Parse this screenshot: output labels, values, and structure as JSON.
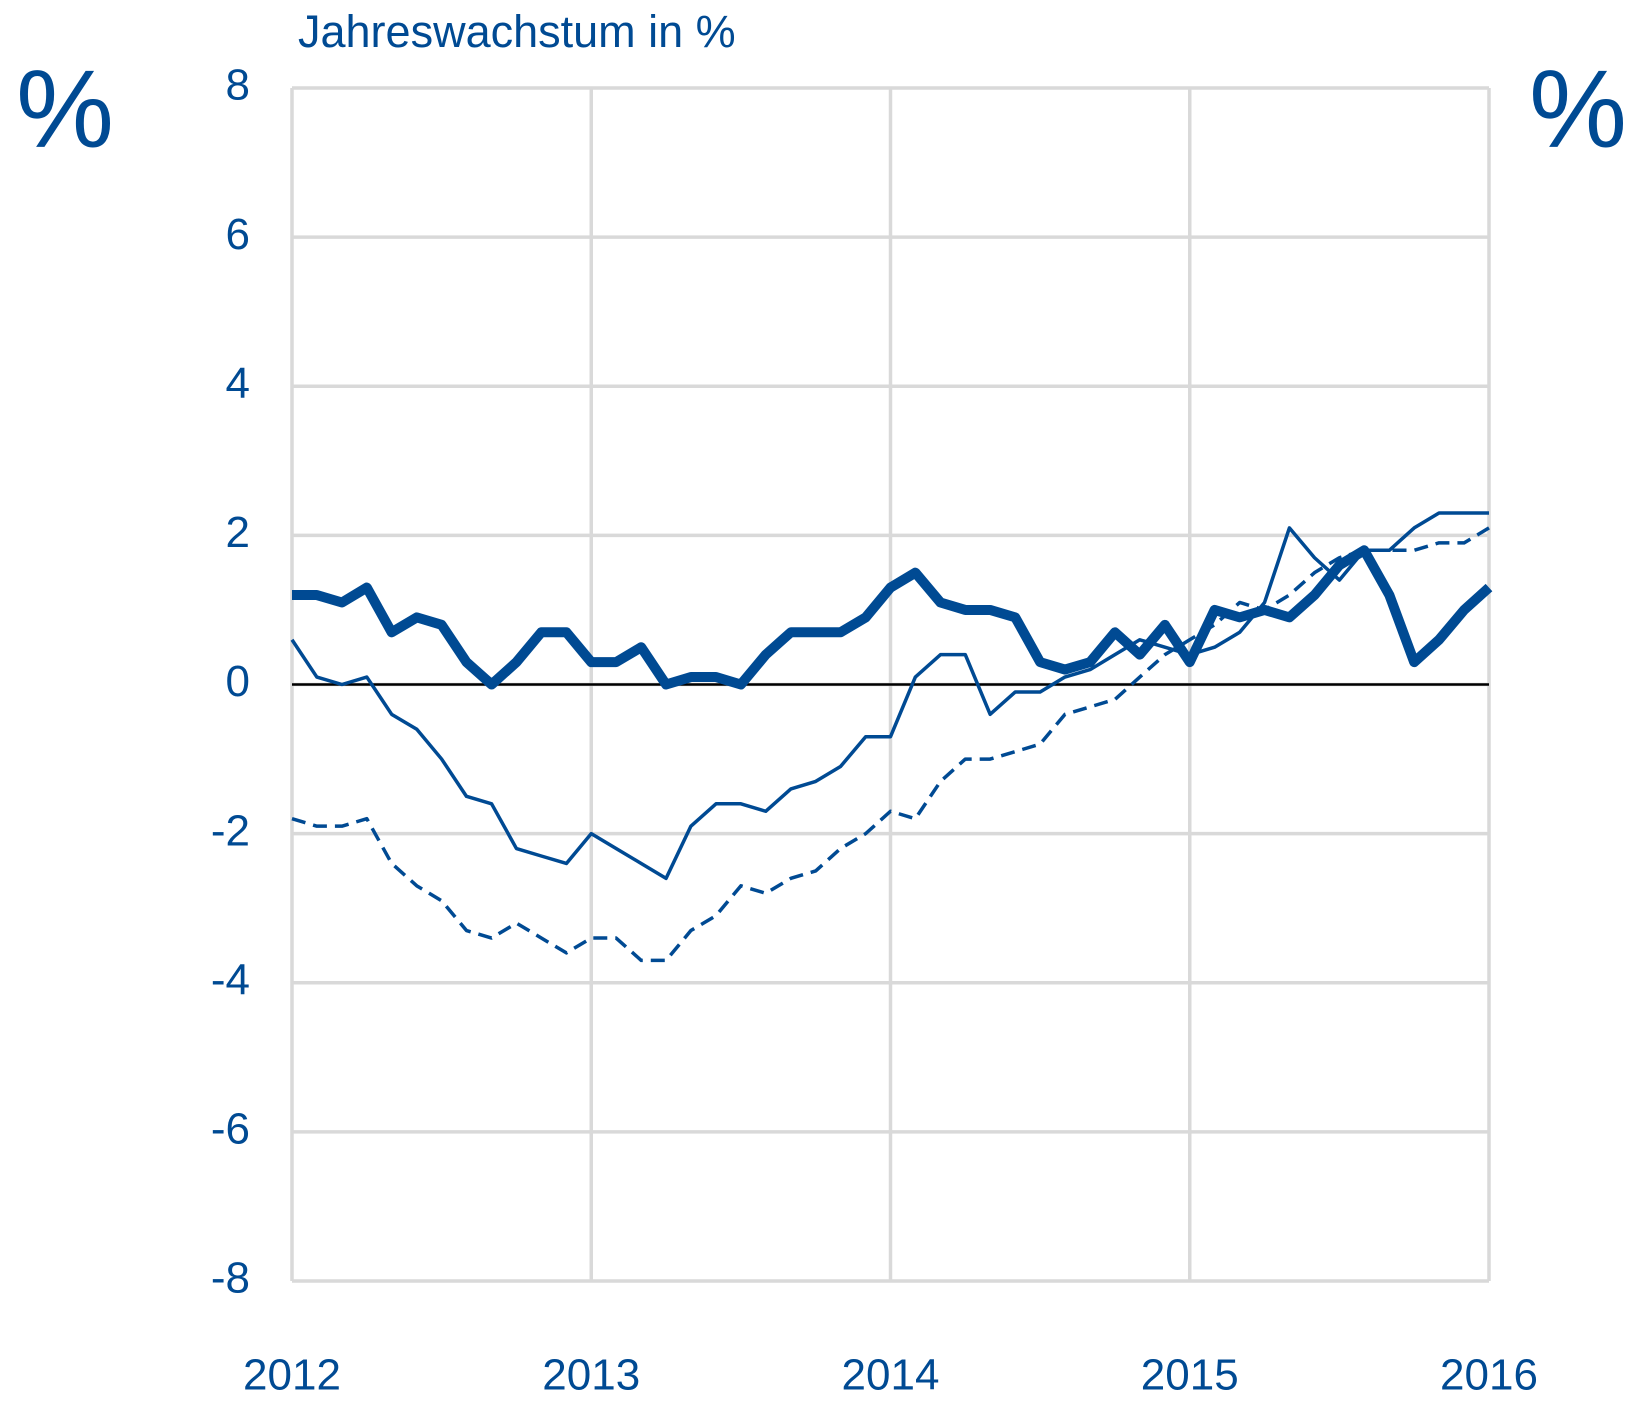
{
  "chart_data": {
    "type": "line",
    "title": "Jahreswachstum in %",
    "ylabel": "%",
    "y2label": "%",
    "x": [
      2012,
      2012.083,
      2012.167,
      2012.25,
      2012.333,
      2012.417,
      2012.5,
      2012.583,
      2012.667,
      2012.75,
      2012.833,
      2012.917,
      2013,
      2013.083,
      2013.167,
      2013.25,
      2013.333,
      2013.417,
      2013.5,
      2013.583,
      2013.667,
      2013.75,
      2013.833,
      2013.917,
      2014,
      2014.083,
      2014.167,
      2014.25,
      2014.333,
      2014.417,
      2014.5,
      2014.583,
      2014.667,
      2014.75,
      2014.833,
      2014.917,
      2015,
      2015.083,
      2015.167,
      2015.25,
      2015.333,
      2015.417,
      2015.5,
      2015.583,
      2015.667,
      2015.75,
      2015.833,
      2015.917,
      2016
    ],
    "series": [
      {
        "color": "#004a93",
        "width": 10,
        "style": "solid",
        "values": [
          1.2,
          1.2,
          1.1,
          1.3,
          0.7,
          0.9,
          0.8,
          0.3,
          0.0,
          0.3,
          0.7,
          0.7,
          0.3,
          0.3,
          0.5,
          0.0,
          0.1,
          0.1,
          0.0,
          0.4,
          0.7,
          0.7,
          0.7,
          0.9,
          1.3,
          1.5,
          1.1,
          1.0,
          1.0,
          0.9,
          0.3,
          0.2,
          0.3,
          0.7,
          0.4,
          0.8,
          0.3,
          1.0,
          0.9,
          1.0,
          0.9,
          1.2,
          1.6,
          1.8,
          1.2,
          0.3,
          0.6,
          1.0,
          1.3
        ]
      },
      {
        "color": "#004a93",
        "width": 3.5,
        "style": "solid",
        "values": [
          0.6,
          0.1,
          0.0,
          0.1,
          -0.4,
          -0.6,
          -1.0,
          -1.5,
          -1.6,
          -2.2,
          -2.3,
          -2.4,
          -2.0,
          -2.2,
          -2.4,
          -2.6,
          -1.9,
          -1.6,
          -1.6,
          -1.7,
          -1.4,
          -1.3,
          -1.1,
          -0.7,
          -0.7,
          0.1,
          0.4,
          0.4,
          -0.4,
          -0.1,
          -0.1,
          0.1,
          0.2,
          0.4,
          0.6,
          0.5,
          0.4,
          0.5,
          0.7,
          1.1,
          2.1,
          1.7,
          1.4,
          1.8,
          1.8,
          2.1,
          2.3,
          2.3,
          2.3
        ]
      },
      {
        "color": "#004a93",
        "width": 3.5,
        "style": "dashed",
        "values": [
          -1.8,
          -1.9,
          -1.9,
          -1.8,
          -2.4,
          -2.7,
          -2.9,
          -3.3,
          -3.4,
          -3.2,
          -3.4,
          -3.6,
          -3.4,
          -3.4,
          -3.7,
          -3.7,
          -3.3,
          -3.1,
          -2.7,
          -2.8,
          -2.6,
          -2.5,
          -2.2,
          -2.0,
          -1.7,
          -1.8,
          -1.3,
          -1.0,
          -1.0,
          -0.9,
          -0.8,
          -0.4,
          -0.3,
          -0.2,
          0.1,
          0.4,
          0.6,
          0.8,
          1.1,
          1.0,
          1.2,
          1.5,
          1.7,
          1.8,
          1.8,
          1.8,
          1.9,
          1.9,
          2.1
        ]
      }
    ],
    "xlim": [
      2012,
      2016
    ],
    "xticks": [
      2012,
      2013,
      2014,
      2015,
      2016
    ],
    "ylim": [
      -8,
      8
    ],
    "yticks": [
      -8,
      -6,
      -4,
      -2,
      0,
      2,
      4,
      6,
      8
    ],
    "grid": true,
    "zero_line": true
  }
}
